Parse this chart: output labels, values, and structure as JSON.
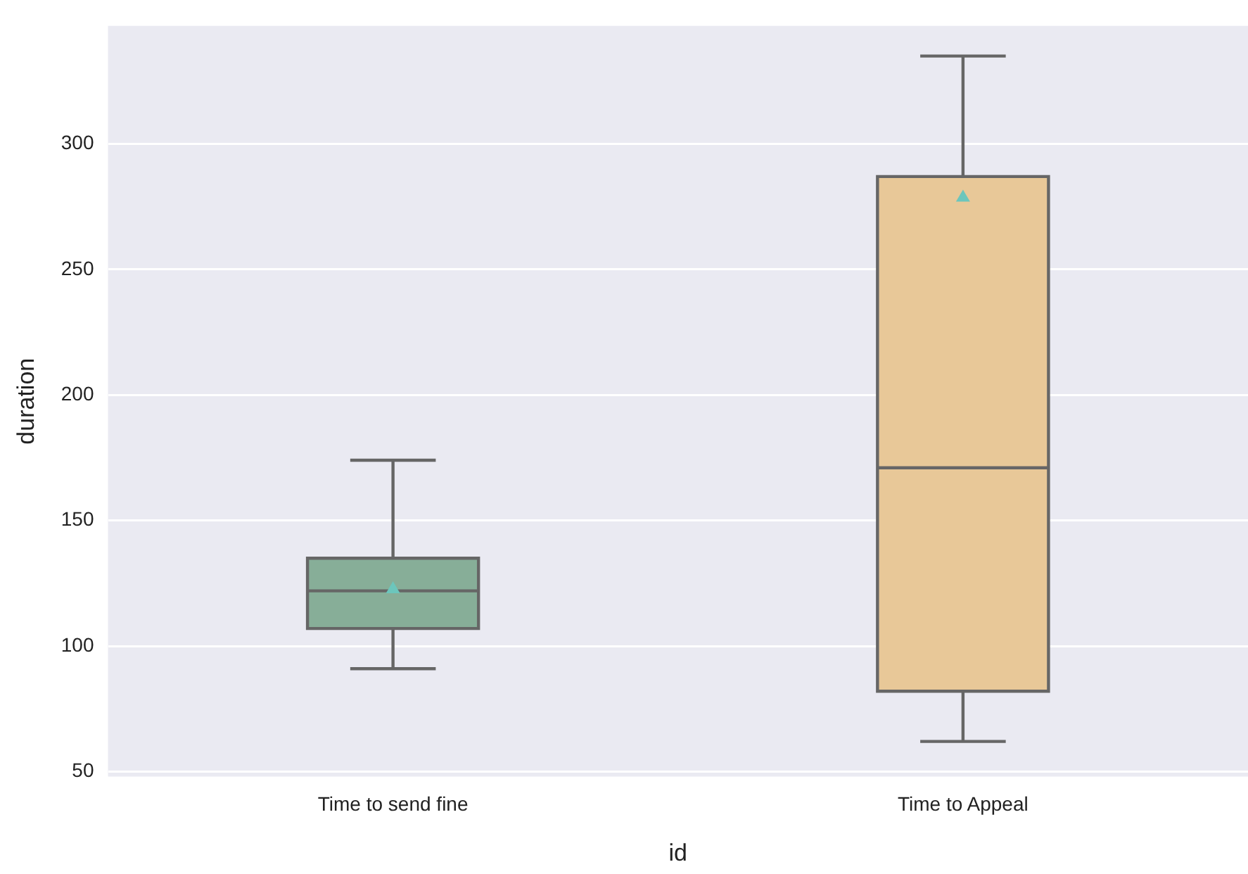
{
  "chart_data": {
    "type": "box",
    "xlabel": "id",
    "ylabel": "duration",
    "categories": [
      "Time to send fine",
      "Time to Appeal"
    ],
    "boxes": [
      {
        "low": 91,
        "q1": 107,
        "median": 122,
        "q3": 135,
        "high": 174,
        "mean": 123
      },
      {
        "low": 62,
        "q1": 82,
        "median": 171,
        "q3": 287,
        "high": 335,
        "mean": 279
      }
    ],
    "colors": [
      "#87ae98",
      "#e8c898"
    ],
    "ylim": [
      48,
      347
    ],
    "yticks": [
      50,
      100,
      150,
      200,
      250,
      300
    ],
    "grid": "y",
    "marker": "triangle"
  }
}
